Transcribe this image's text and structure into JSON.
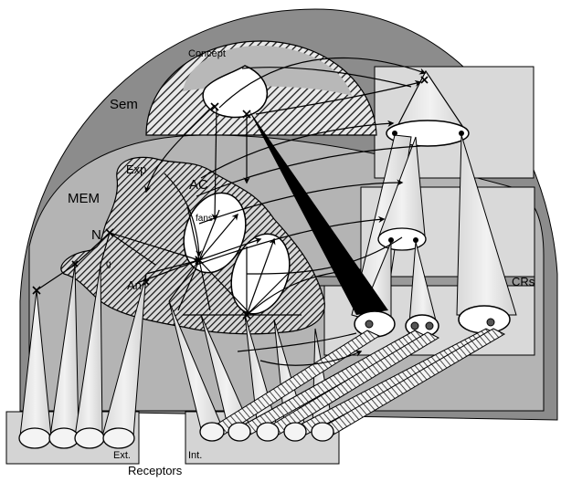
{
  "labels": {
    "concept": "Concept",
    "sem": "Sem",
    "exp": "Exp",
    "ac": "AC",
    "mem": "MEM",
    "fans": "fans",
    "n": "N",
    "g": "g",
    "an": "An",
    "crs": "CRs",
    "ext": "Ext.",
    "int": "Int.",
    "receptors": "Receptors"
  },
  "colors": {
    "outer_dome": "#8c8c8c",
    "inner_dome": "#b4b4b4",
    "panel": "#d9d9d9",
    "receptor_box": "#d4d4d4",
    "cone_fill": "#e6e6e6",
    "hatch_bg": "#5a5a5a",
    "ink": "#000000"
  }
}
